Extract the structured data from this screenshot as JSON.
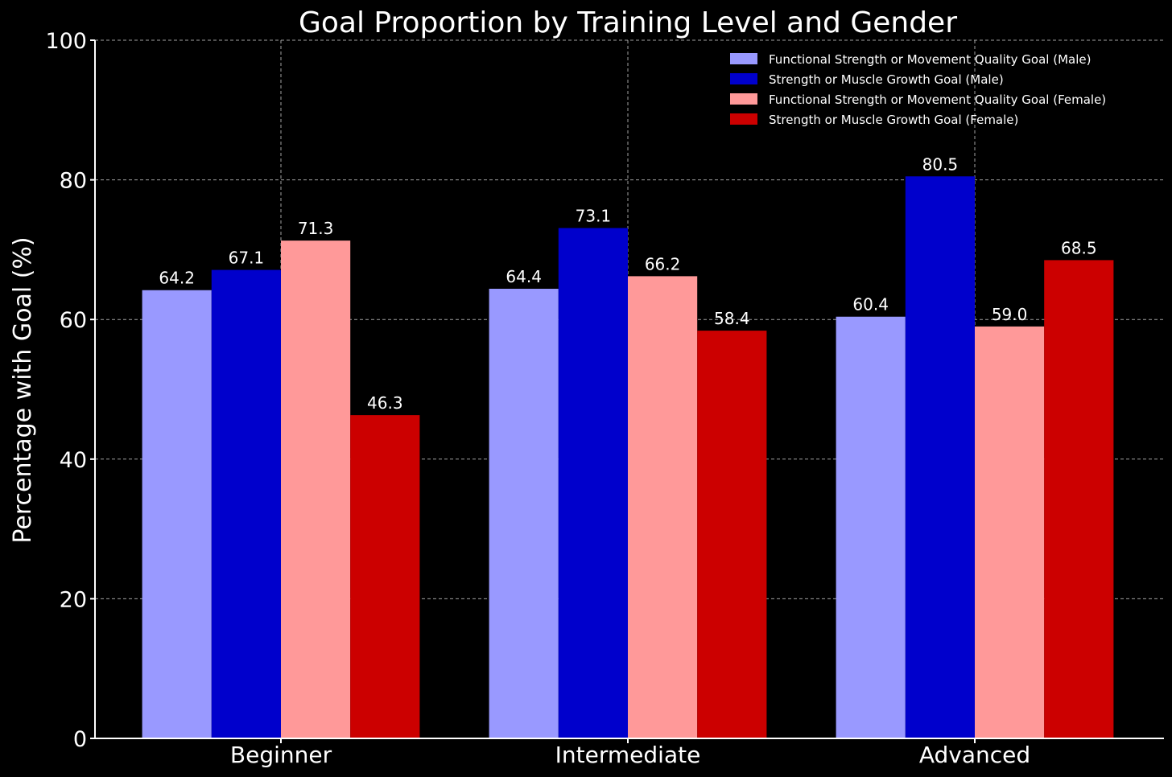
{
  "chart_data": {
    "type": "bar",
    "title": "Goal Proportion by Training Level and Gender",
    "xlabel": "",
    "ylabel": "Percentage with Goal (%)",
    "ylim": [
      0,
      100
    ],
    "yticks": [
      "0",
      "20",
      "40",
      "60",
      "80",
      "100"
    ],
    "grid": true,
    "legend_position": "top-right",
    "categories": [
      "Beginner",
      "Intermediate",
      "Advanced"
    ],
    "series": [
      {
        "name": "Functional Strength or Movement Quality Goal (Male)",
        "color": "#9999ff",
        "values": [
          64.2,
          64.4,
          60.4
        ],
        "labels": [
          "64.2",
          "64.4",
          "60.4"
        ]
      },
      {
        "name": "Strength or Muscle Growth Goal (Male)",
        "color": "#0000cc",
        "values": [
          67.1,
          73.1,
          80.5
        ],
        "labels": [
          "67.1",
          "73.1",
          "80.5"
        ]
      },
      {
        "name": "Functional Strength or Movement Quality Goal (Female)",
        "color": "#ff9999",
        "values": [
          71.3,
          66.2,
          59.0
        ],
        "labels": [
          "71.3",
          "66.2",
          "59.0"
        ]
      },
      {
        "name": "Strength or Muscle Growth Goal (Female)",
        "color": "#cc0000",
        "values": [
          46.3,
          58.4,
          68.5
        ],
        "labels": [
          "46.3",
          "58.4",
          "68.5"
        ]
      }
    ]
  }
}
